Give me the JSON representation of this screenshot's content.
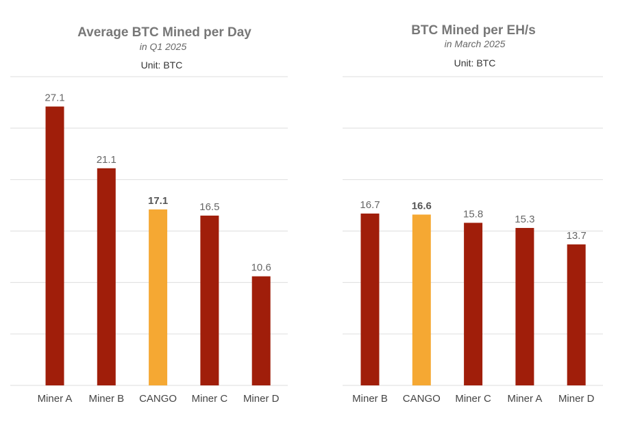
{
  "chart_data": [
    {
      "type": "bar",
      "title": "Average BTC Mined per Day",
      "subtitle": "in Q1 2025",
      "unit_label": "Unit: BTC",
      "categories": [
        "Miner A",
        "Miner B",
        "CANGO",
        "Miner C",
        "Miner D"
      ],
      "values": [
        27.1,
        21.1,
        17.1,
        16.5,
        10.6
      ],
      "data_labels": [
        "27.1",
        "21.1",
        "17.1",
        "16.5",
        "10.6"
      ],
      "highlight": "CANGO",
      "ylim": [
        0,
        30
      ],
      "grid": true,
      "colors": {
        "bar": "#a01e0a",
        "highlight": "#f5a833",
        "grid": "#dddddd"
      }
    },
    {
      "type": "bar",
      "title": "BTC Mined per EH/s",
      "subtitle": "in March 2025",
      "unit_label": "Unit: BTC",
      "categories": [
        "Miner B",
        "CANGO",
        "Miner C",
        "Miner A",
        "Miner D"
      ],
      "values": [
        16.7,
        16.6,
        15.8,
        15.3,
        13.7
      ],
      "data_labels": [
        "16.7",
        "16.6",
        "15.8",
        "15.3",
        "13.7"
      ],
      "highlight": "CANGO",
      "ylim": [
        0,
        30
      ],
      "grid": true,
      "colors": {
        "bar": "#a01e0a",
        "highlight": "#f5a833",
        "grid": "#dddddd"
      }
    }
  ]
}
